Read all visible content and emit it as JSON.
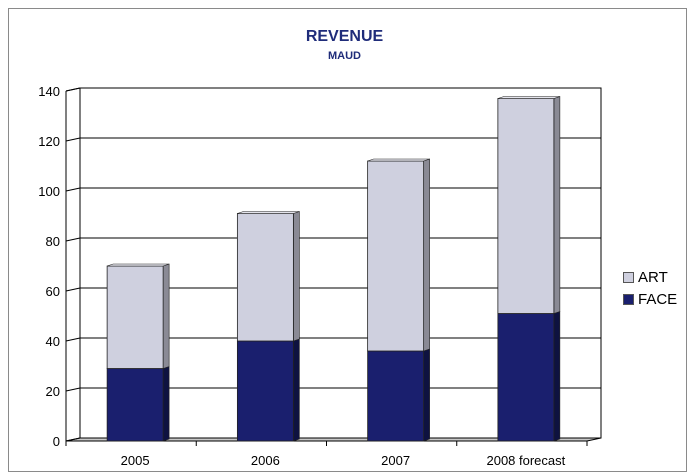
{
  "chart_data": {
    "type": "bar",
    "stacked": true,
    "title": "REVENUE",
    "subtitle": "MAUD",
    "categories": [
      "2005",
      "2006",
      "2007",
      "2008 forecast"
    ],
    "series": [
      {
        "name": "FACE",
        "values": [
          29,
          40,
          36,
          51
        ],
        "color": "#1a1f6e"
      },
      {
        "name": "ART",
        "values": [
          41,
          51,
          76,
          86
        ],
        "color": "#cfd0df"
      }
    ],
    "ylim": [
      0,
      140
    ],
    "yticks": [
      0,
      20,
      40,
      60,
      80,
      100,
      120,
      140
    ],
    "grid": true,
    "legend_position": "right",
    "legend_order": [
      "ART",
      "FACE"
    ]
  }
}
